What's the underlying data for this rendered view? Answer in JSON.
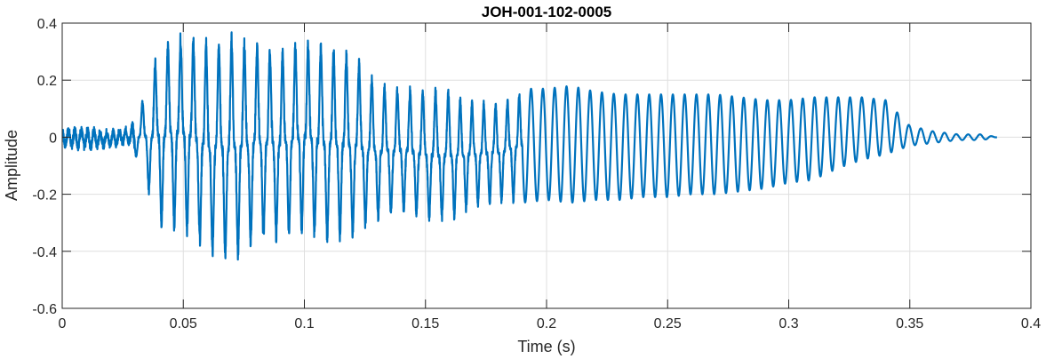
{
  "chart_data": {
    "type": "line",
    "title": "JOH-001-102-0005",
    "xlabel": "Time (s)",
    "ylabel": "Amplitude",
    "xlim": [
      0,
      0.4
    ],
    "ylim": [
      -0.6,
      0.4
    ],
    "xticks": [
      0,
      0.05,
      0.1,
      0.15,
      0.2,
      0.25,
      0.3,
      0.35,
      0.4
    ],
    "xtick_labels": [
      "0",
      "0.05",
      "0.1",
      "0.15",
      "0.2",
      "0.25",
      "0.3",
      "0.35",
      "0.4"
    ],
    "yticks": [
      -0.6,
      -0.4,
      -0.2,
      0,
      0.2,
      0.4
    ],
    "ytick_labels": [
      "-0.6",
      "-0.4",
      "-0.2",
      "0",
      "0.2",
      "0.4"
    ],
    "grid": true,
    "line_color": "#0072BD",
    "series": [
      {
        "x": [
          0,
          0.01,
          0.02,
          0.028,
          0.032,
          0.04,
          0.05,
          0.06,
          0.07,
          0.08,
          0.09,
          0.1,
          0.11,
          0.12,
          0.13,
          0.14,
          0.15,
          0.16,
          0.17,
          0.18,
          0.19,
          0.2,
          0.21,
          0.22,
          0.23,
          0.24,
          0.25,
          0.26,
          0.27,
          0.28,
          0.29,
          0.3,
          0.31,
          0.32,
          0.33,
          0.34,
          0.35,
          0.36,
          0.37,
          0.38,
          0.386
        ],
        "envelope_max": [
          0.04,
          0.04,
          0.03,
          0.04,
          0.1,
          0.33,
          0.38,
          0.35,
          0.37,
          0.34,
          0.32,
          0.35,
          0.33,
          0.31,
          0.2,
          0.18,
          0.18,
          0.17,
          0.13,
          0.13,
          0.17,
          0.17,
          0.18,
          0.16,
          0.15,
          0.15,
          0.15,
          0.15,
          0.15,
          0.14,
          0.13,
          0.13,
          0.14,
          0.14,
          0.14,
          0.13,
          0.04,
          0.02,
          0.01,
          0.01,
          0.0
        ],
        "envelope_min": [
          -0.04,
          -0.05,
          -0.04,
          -0.03,
          -0.1,
          -0.32,
          -0.34,
          -0.42,
          -0.45,
          -0.38,
          -0.37,
          -0.35,
          -0.38,
          -0.36,
          -0.3,
          -0.27,
          -0.3,
          -0.3,
          -0.25,
          -0.24,
          -0.23,
          -0.22,
          -0.23,
          -0.22,
          -0.22,
          -0.21,
          -0.21,
          -0.2,
          -0.2,
          -0.19,
          -0.18,
          -0.16,
          -0.15,
          -0.11,
          -0.08,
          -0.06,
          -0.03,
          -0.02,
          -0.01,
          -0.01,
          0.0
        ]
      }
    ]
  }
}
